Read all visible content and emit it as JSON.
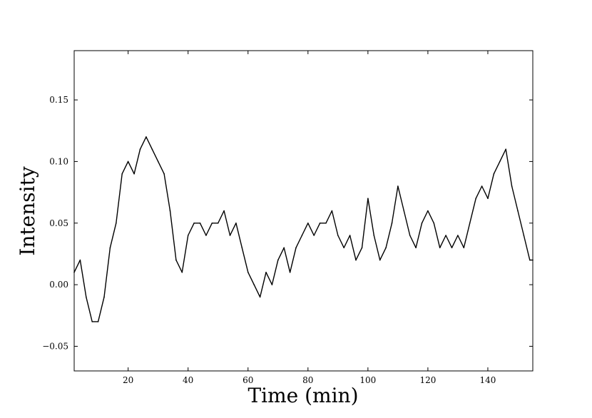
{
  "chart_data": {
    "type": "line",
    "title": "",
    "xlabel": "Time (min)",
    "ylabel": "Intensity",
    "xlim": [
      2,
      155
    ],
    "ylim": [
      -0.07,
      0.19
    ],
    "grid": false,
    "legend": "none",
    "line_color": "#000000",
    "x_ticks": [
      {
        "value": 20,
        "label": "20"
      },
      {
        "value": 40,
        "label": "40"
      },
      {
        "value": 60,
        "label": "60"
      },
      {
        "value": 80,
        "label": "80"
      },
      {
        "value": 100,
        "label": "100"
      },
      {
        "value": 120,
        "label": "120"
      },
      {
        "value": 140,
        "label": "140"
      }
    ],
    "y_ticks": [
      {
        "value": -0.05,
        "label": "−0.05"
      },
      {
        "value": 0.0,
        "label": "0.00"
      },
      {
        "value": 0.05,
        "label": "0.05"
      },
      {
        "value": 0.1,
        "label": "0.10"
      },
      {
        "value": 0.15,
        "label": "0.15"
      }
    ],
    "series": [
      {
        "x": [
          2,
          4,
          6,
          8,
          10,
          12,
          14,
          16,
          18,
          20,
          22,
          24,
          26,
          28,
          30,
          32,
          34,
          36,
          38,
          40,
          42,
          44,
          46,
          48,
          50,
          52,
          54,
          56,
          58,
          60,
          62,
          64,
          66,
          68,
          70,
          72,
          74,
          76,
          78,
          80,
          82,
          84,
          86,
          88,
          90,
          92,
          94,
          96,
          98,
          100,
          102,
          104,
          106,
          108,
          110,
          112,
          114,
          116,
          118,
          120,
          122,
          124,
          126,
          128,
          130,
          132,
          134,
          136,
          138,
          140,
          142,
          144,
          146,
          148,
          150,
          152,
          154,
          155
        ],
        "y": [
          0.01,
          0.02,
          -0.01,
          -0.03,
          -0.03,
          -0.01,
          0.03,
          0.05,
          0.09,
          0.1,
          0.09,
          0.11,
          0.12,
          0.11,
          0.1,
          0.09,
          0.06,
          0.02,
          0.01,
          0.04,
          0.05,
          0.05,
          0.04,
          0.05,
          0.05,
          0.06,
          0.04,
          0.05,
          0.03,
          0.01,
          0.0,
          -0.01,
          0.01,
          0.0,
          0.02,
          0.03,
          0.01,
          0.03,
          0.04,
          0.05,
          0.04,
          0.05,
          0.05,
          0.06,
          0.04,
          0.03,
          0.04,
          0.02,
          0.03,
          0.07,
          0.04,
          0.02,
          0.03,
          0.05,
          0.08,
          0.06,
          0.04,
          0.03,
          0.05,
          0.06,
          0.05,
          0.03,
          0.04,
          0.03,
          0.04,
          0.03,
          0.05,
          0.07,
          0.08,
          0.07,
          0.09,
          0.1,
          0.11,
          0.08,
          0.06,
          0.04,
          0.02,
          0.02
        ]
      }
    ]
  }
}
